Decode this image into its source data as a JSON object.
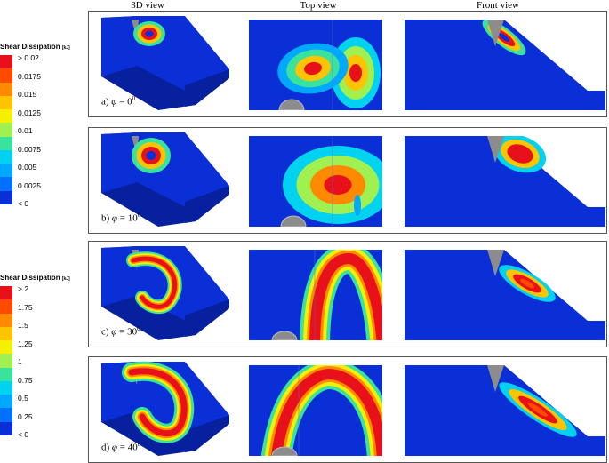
{
  "headers": {
    "view3d": "3D view",
    "top": "Top view",
    "front": "Front view"
  },
  "legend_top": {
    "title": "Shear Dissipation",
    "unit": "[kJ]",
    "ticks": [
      "> 0.02",
      "0.0175",
      "0.015",
      "0.0125",
      "0.01",
      "0.0075",
      "0.005",
      "0.0025",
      "< 0"
    ]
  },
  "legend_bottom": {
    "title": "Shear Dissipation",
    "unit": "[kJ]",
    "ticks": [
      "> 2",
      "1.75",
      "1.5",
      "1.25",
      "1",
      "0.75",
      "0.5",
      "0.25",
      "< 0"
    ]
  },
  "panels": [
    {
      "prefix": "a)",
      "symbol": "φ",
      "eq": " = 0",
      "sup": "0"
    },
    {
      "prefix": "b)",
      "symbol": "φ",
      "eq": " = 10",
      "sup": "0"
    },
    {
      "prefix": "c)",
      "symbol": "φ",
      "eq": " = 30",
      "sup": "0"
    },
    {
      "prefix": "d)",
      "symbol": "φ",
      "eq": " = 40",
      "sup": "0"
    }
  ],
  "colors": {
    "field": "#0a2fd6",
    "field_dark": "#07209e",
    "scale": [
      "#e8101a",
      "#ff4a00",
      "#ff8a00",
      "#ffc400",
      "#f4f000",
      "#9ff050",
      "#39e39e",
      "#00d2f0",
      "#00a9ff",
      "#0070ff",
      "#0a2fd6"
    ],
    "rock": "#8c8c8c"
  }
}
